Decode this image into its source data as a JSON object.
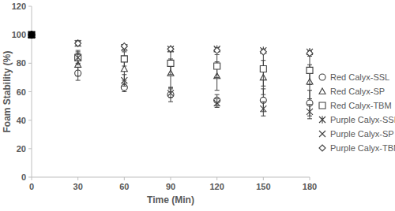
{
  "chart_data": {
    "type": "scatter",
    "x_label": "Time (Min)",
    "y_label": "Foam Stability (%)",
    "x": [
      0,
      30,
      60,
      90,
      120,
      150,
      180
    ],
    "xlim": [
      0,
      180
    ],
    "xticks": [
      0,
      30,
      60,
      90,
      120,
      150,
      180
    ],
    "ylim": [
      0,
      120
    ],
    "yticks": [
      0,
      20,
      40,
      60,
      80,
      100,
      120
    ],
    "grid": false,
    "legend": "right",
    "series": [
      {
        "name": "Red Calyx-SSL",
        "color": "#404040",
        "marker": "circle",
        "values": [
          100,
          73,
          63,
          58,
          54,
          54,
          52
        ],
        "errors": [
          0,
          5,
          3,
          5,
          4,
          8,
          9
        ]
      },
      {
        "name": "Red Calyx-SP",
        "color": "#404040",
        "marker": "triangle",
        "values": [
          100,
          79,
          76,
          73,
          71,
          70,
          67
        ],
        "errors": [
          0,
          8,
          8,
          10,
          10,
          12,
          12
        ]
      },
      {
        "name": "Red Calyx-TBM",
        "color": "#404040",
        "marker": "square",
        "values": [
          100,
          84,
          83,
          80,
          78,
          76,
          75
        ],
        "errors": [
          0,
          5,
          5,
          8,
          8,
          12,
          10
        ]
      },
      {
        "name": "Purple Calyx-SSL",
        "color": "#404040",
        "marker": "asterisk",
        "values": [
          100,
          94,
          91,
          90,
          90,
          89,
          88
        ],
        "errors": [
          0,
          2,
          2,
          1,
          1,
          1,
          1
        ]
      },
      {
        "name": "Purple Calyx-SP",
        "color": "#404040",
        "marker": "x",
        "values": [
          100,
          84,
          68,
          59,
          52,
          48,
          46
        ],
        "errors": [
          0,
          4,
          4,
          3,
          3,
          5,
          5
        ]
      },
      {
        "name": "Purple Calyx-TBM",
        "color": "#404040",
        "marker": "diamond",
        "values": [
          100,
          94,
          92,
          90,
          89,
          88,
          87
        ],
        "errors": [
          0,
          1,
          1,
          1,
          1,
          1,
          1
        ]
      }
    ]
  }
}
